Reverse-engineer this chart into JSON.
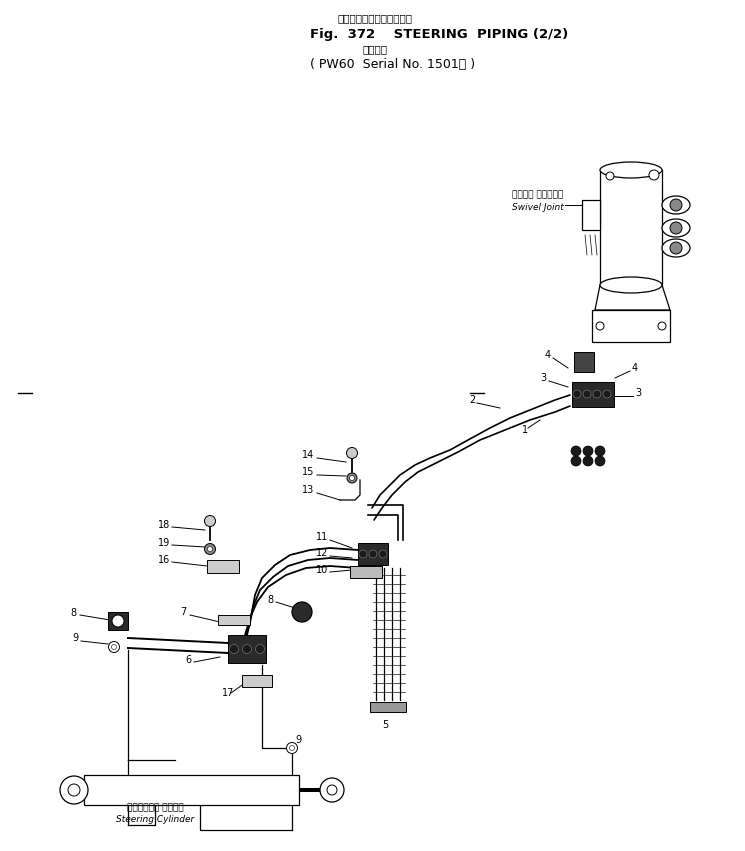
{
  "title_jp": "ステアリング　パイピング",
  "title_en": "Fig.  372    STEERING  PIPING (2/2)",
  "title_sub_jp": "適用号機",
  "title_sub_en": "( PW60  Serial No. 1501～ )",
  "swivel_jp": "スイベル ジェイント",
  "swivel_en": "Swivel Joint",
  "steering_jp": "ステアリング シリンダ",
  "steering_en": "Steering Cylinder",
  "bg": "#ffffff",
  "lc": "#000000"
}
